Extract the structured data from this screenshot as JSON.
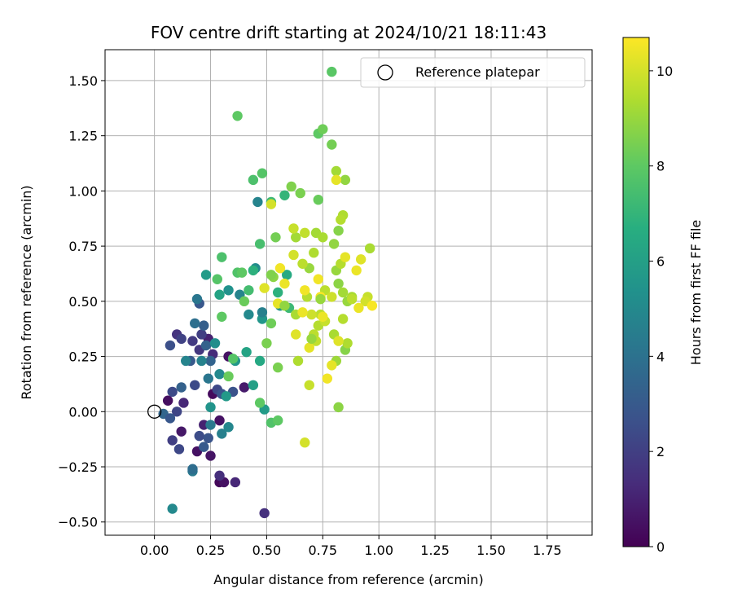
{
  "chart_data": {
    "type": "scatter",
    "title": "FOV centre drift starting at 2024/10/21 18:11:43",
    "xlabel": "Angular distance from reference (arcmin)",
    "ylabel": "Rotation from reference (arcmin)",
    "xlim": [
      -0.22,
      1.95
    ],
    "ylim": [
      -0.56,
      1.64
    ],
    "x_ticks": [
      0.0,
      0.25,
      0.5,
      0.75,
      1.0,
      1.25,
      1.5,
      1.75
    ],
    "x_tick_labels": [
      "0.00",
      "0.25",
      "0.50",
      "0.75",
      "1.00",
      "1.25",
      "1.50",
      "1.75"
    ],
    "y_ticks": [
      -0.5,
      -0.25,
      0.0,
      0.25,
      0.5,
      0.75,
      1.0,
      1.25,
      1.5
    ],
    "y_tick_labels": [
      "−0.50",
      "−0.25",
      "0.00",
      "0.25",
      "0.50",
      "0.75",
      "1.00",
      "1.25",
      "1.50"
    ],
    "grid": true,
    "legend": {
      "placement": "top-right",
      "entries": [
        {
          "label": "Reference platepar",
          "marker": "open-circle"
        }
      ]
    },
    "reference_point": [
      0.0,
      0.0
    ],
    "colorbar": {
      "label": "Hours from first FF file",
      "colormap": "viridis",
      "range": [
        0,
        10.7
      ],
      "ticks": [
        0,
        2,
        4,
        6,
        8,
        10
      ],
      "tick_labels": [
        "0",
        "2",
        "4",
        "6",
        "8",
        "10"
      ]
    },
    "points": [
      [
        0.29,
        -0.32,
        0.2
      ],
      [
        0.31,
        -0.32,
        0.5
      ],
      [
        0.36,
        -0.32,
        1.2
      ],
      [
        0.49,
        -0.46,
        1.5
      ],
      [
        0.08,
        -0.44,
        5.0
      ],
      [
        0.26,
        0.08,
        0.3
      ],
      [
        0.33,
        0.25,
        0.5
      ],
      [
        0.4,
        0.11,
        0.8
      ],
      [
        0.29,
        -0.04,
        0.5
      ],
      [
        0.06,
        0.05,
        0.4
      ],
      [
        0.12,
        -0.09,
        0.7
      ],
      [
        0.19,
        -0.18,
        0.5
      ],
      [
        0.25,
        -0.2,
        0.6
      ],
      [
        0.29,
        -0.29,
        1.4
      ],
      [
        0.22,
        -0.06,
        1.0
      ],
      [
        0.13,
        0.04,
        1.2
      ],
      [
        0.24,
        0.33,
        1.0
      ],
      [
        0.26,
        0.26,
        1.3
      ],
      [
        0.1,
        0.35,
        1.6
      ],
      [
        0.08,
        -0.13,
        2.0
      ],
      [
        0.11,
        -0.17,
        2.3
      ],
      [
        0.2,
        -0.11,
        2.5
      ],
      [
        0.22,
        -0.16,
        3.0
      ],
      [
        0.24,
        -0.12,
        2.8
      ],
      [
        0.17,
        0.32,
        1.8
      ],
      [
        0.2,
        0.28,
        1.7
      ],
      [
        0.18,
        0.12,
        2.4
      ],
      [
        0.07,
        0.3,
        2.6
      ],
      [
        0.16,
        0.23,
        3.0
      ],
      [
        0.23,
        0.3,
        3.3
      ],
      [
        0.21,
        0.35,
        2.0
      ],
      [
        0.12,
        0.11,
        3.3
      ],
      [
        0.28,
        0.1,
        2.3
      ],
      [
        0.3,
        0.08,
        2.8
      ],
      [
        0.35,
        0.09,
        2.7
      ],
      [
        0.1,
        0.0,
        2.2
      ],
      [
        0.08,
        0.09,
        2.4
      ],
      [
        0.04,
        -0.01,
        3.5
      ],
      [
        0.07,
        -0.03,
        2.9
      ],
      [
        0.12,
        0.33,
        2.1
      ],
      [
        0.22,
        0.39,
        3.2
      ],
      [
        0.2,
        0.49,
        2.9
      ],
      [
        0.19,
        0.51,
        4.2
      ],
      [
        0.25,
        0.23,
        3.4
      ],
      [
        0.18,
        0.4,
        3.9
      ],
      [
        0.24,
        0.15,
        4.2
      ],
      [
        0.3,
        -0.1,
        4.6
      ],
      [
        0.33,
        -0.07,
        4.9
      ],
      [
        0.25,
        -0.06,
        4.3
      ],
      [
        0.17,
        -0.27,
        4.3
      ],
      [
        0.17,
        -0.26,
        3.8
      ],
      [
        0.21,
        0.23,
        4.7
      ],
      [
        0.14,
        0.23,
        4.8
      ],
      [
        0.27,
        0.31,
        5.2
      ],
      [
        0.25,
        0.02,
        5.5
      ],
      [
        0.29,
        0.17,
        5.0
      ],
      [
        0.32,
        0.07,
        5.7
      ],
      [
        0.36,
        0.23,
        5.6
      ],
      [
        0.33,
        0.55,
        5.4
      ],
      [
        0.29,
        0.53,
        6.2
      ],
      [
        0.23,
        0.62,
        5.8
      ],
      [
        0.48,
        0.42,
        5.6
      ],
      [
        0.48,
        0.45,
        4.6
      ],
      [
        0.42,
        0.44,
        5.0
      ],
      [
        0.38,
        0.53,
        4.8
      ],
      [
        0.45,
        0.65,
        5.1
      ],
      [
        0.46,
        0.95,
        4.8
      ],
      [
        0.56,
        0.48,
        5.5
      ],
      [
        0.49,
        0.01,
        5.8
      ],
      [
        0.44,
        0.12,
        6.0
      ],
      [
        0.41,
        0.27,
        6.2
      ],
      [
        0.47,
        0.23,
        6.4
      ],
      [
        0.44,
        0.64,
        6.8
      ],
      [
        0.55,
        0.54,
        6.8
      ],
      [
        0.59,
        0.62,
        6.5
      ],
      [
        0.6,
        0.47,
        7.2
      ],
      [
        0.58,
        0.98,
        7.0
      ],
      [
        0.52,
        0.95,
        7.2
      ],
      [
        0.42,
        0.55,
        7.4
      ],
      [
        0.3,
        0.7,
        7.6
      ],
      [
        0.28,
        0.6,
        7.8
      ],
      [
        0.37,
        0.63,
        7.7
      ],
      [
        0.39,
        0.63,
        8.0
      ],
      [
        0.4,
        0.5,
        8.2
      ],
      [
        0.35,
        0.24,
        7.8
      ],
      [
        0.33,
        0.16,
        8.2
      ],
      [
        0.3,
        0.43,
        8.0
      ],
      [
        0.47,
        0.76,
        7.5
      ],
      [
        0.44,
        1.05,
        7.6
      ],
      [
        0.48,
        1.08,
        7.8
      ],
      [
        0.37,
        1.34,
        8.0
      ],
      [
        0.52,
        0.4,
        8.3
      ],
      [
        0.5,
        0.31,
        8.5
      ],
      [
        0.47,
        0.04,
        8.0
      ],
      [
        0.52,
        -0.05,
        7.7
      ],
      [
        0.55,
        -0.04,
        8.0
      ],
      [
        0.55,
        0.2,
        8.5
      ],
      [
        0.53,
        0.61,
        8.8
      ],
      [
        0.54,
        0.79,
        8.4
      ],
      [
        0.61,
        1.02,
        8.6
      ],
      [
        0.65,
        0.99,
        8.5
      ],
      [
        0.73,
        1.26,
        8.0
      ],
      [
        0.75,
        1.28,
        8.3
      ],
      [
        0.79,
        1.21,
        8.4
      ],
      [
        0.79,
        1.54,
        7.9
      ],
      [
        0.73,
        0.96,
        8.2
      ],
      [
        0.81,
        1.09,
        9.2
      ],
      [
        0.85,
        1.05,
        8.9
      ],
      [
        0.82,
        0.82,
        8.7
      ],
      [
        0.8,
        0.76,
        8.9
      ],
      [
        0.81,
        0.64,
        9.0
      ],
      [
        0.82,
        0.58,
        8.8
      ],
      [
        0.84,
        0.54,
        9.2
      ],
      [
        0.86,
        0.5,
        9.0
      ],
      [
        0.88,
        0.52,
        9.3
      ],
      [
        0.84,
        0.42,
        9.5
      ],
      [
        0.8,
        0.35,
        9.3
      ],
      [
        0.81,
        0.23,
        9.1
      ],
      [
        0.85,
        0.28,
        8.7
      ],
      [
        0.86,
        0.31,
        9.4
      ],
      [
        0.71,
        0.72,
        9.4
      ],
      [
        0.69,
        0.65,
        9.0
      ],
      [
        0.68,
        0.52,
        9.5
      ],
      [
        0.66,
        0.67,
        9.6
      ],
      [
        0.63,
        0.44,
        9.3
      ],
      [
        0.63,
        0.79,
        9.2
      ],
      [
        0.64,
        0.23,
        9.4
      ],
      [
        0.71,
        0.35,
        9.6
      ],
      [
        0.72,
        0.32,
        9.7
      ],
      [
        0.73,
        0.39,
        9.5
      ],
      [
        0.76,
        0.41,
        9.8
      ],
      [
        0.74,
        0.44,
        9.6
      ],
      [
        0.7,
        0.44,
        9.9
      ],
      [
        0.72,
        0.81,
        9.2
      ],
      [
        0.75,
        0.79,
        9.3
      ],
      [
        0.76,
        0.55,
        9.6
      ],
      [
        0.79,
        0.52,
        9.9
      ],
      [
        0.83,
        0.67,
        9.5
      ],
      [
        0.84,
        0.89,
        9.4
      ],
      [
        0.83,
        0.87,
        9.5
      ],
      [
        0.88,
        0.51,
        9.6
      ],
      [
        0.95,
        0.52,
        9.8
      ],
      [
        0.96,
        0.74,
        9.3
      ],
      [
        0.94,
        0.5,
        10.0
      ],
      [
        0.92,
        0.69,
        10.2
      ],
      [
        0.9,
        0.64,
        10.4
      ],
      [
        0.97,
        0.48,
        10.6
      ],
      [
        0.91,
        0.47,
        10.4
      ],
      [
        0.85,
        0.7,
        10.3
      ],
      [
        0.82,
        0.32,
        10.2
      ],
      [
        0.79,
        0.21,
        10.3
      ],
      [
        0.77,
        0.15,
        10.5
      ],
      [
        0.75,
        0.43,
        10.4
      ],
      [
        0.74,
        0.52,
        10.6
      ],
      [
        0.73,
        0.6,
        10.5
      ],
      [
        0.69,
        0.12,
        9.8
      ],
      [
        0.67,
        -0.14,
        10.0
      ],
      [
        0.69,
        0.29,
        10.3
      ],
      [
        0.66,
        0.45,
        10.4
      ],
      [
        0.67,
        0.55,
        10.5
      ],
      [
        0.63,
        0.35,
        10.2
      ],
      [
        0.62,
        0.71,
        10.0
      ],
      [
        0.58,
        0.58,
        10.4
      ],
      [
        0.56,
        0.65,
        10.5
      ],
      [
        0.55,
        0.49,
        10.3
      ],
      [
        0.49,
        0.56,
        10.2
      ],
      [
        0.52,
        0.94,
        10.0
      ],
      [
        0.62,
        0.83,
        9.8
      ],
      [
        0.67,
        0.81,
        9.7
      ],
      [
        0.81,
        1.05,
        10.3
      ],
      [
        0.74,
        0.51,
        9.0
      ],
      [
        0.82,
        0.02,
        8.8
      ],
      [
        0.7,
        0.33,
        9.0
      ],
      [
        0.58,
        0.48,
        8.9
      ],
      [
        0.52,
        0.62,
        8.6
      ]
    ]
  }
}
